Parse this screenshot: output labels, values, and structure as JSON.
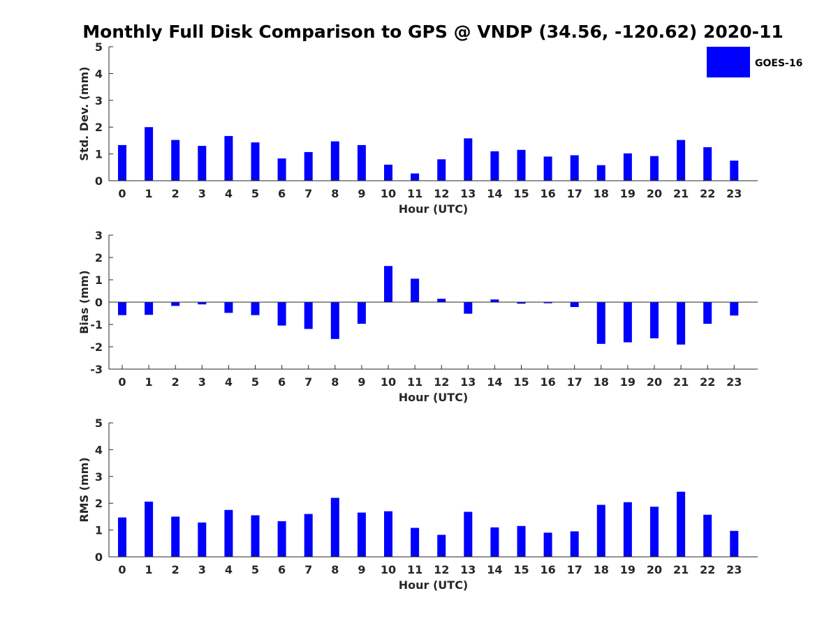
{
  "chart_data": {
    "title": "Monthly Full Disk Comparison to GPS @ VNDP (34.56, -120.62) 2020-11",
    "series_color": "#0000ff",
    "legend": {
      "label": "GOES-16",
      "location": "top-right"
    },
    "panels": [
      {
        "type": "bar",
        "name": "std-dev",
        "xlabel": "Hour (UTC)",
        "ylabel": "Std. Dev. (mm)",
        "ylim": [
          0,
          5
        ],
        "yticks": [
          "0",
          "1",
          "2",
          "3",
          "4",
          "5"
        ],
        "categories": [
          "0",
          "1",
          "2",
          "3",
          "4",
          "5",
          "6",
          "7",
          "8",
          "9",
          "10",
          "11",
          "12",
          "13",
          "14",
          "15",
          "16",
          "17",
          "18",
          "19",
          "20",
          "21",
          "22",
          "23"
        ],
        "values": [
          1.33,
          2.0,
          1.52,
          1.3,
          1.67,
          1.43,
          0.83,
          1.07,
          1.47,
          1.33,
          0.6,
          0.27,
          0.8,
          1.58,
          1.1,
          1.15,
          0.9,
          0.95,
          0.58,
          1.02,
          0.92,
          1.52,
          1.25,
          0.75
        ]
      },
      {
        "type": "bar",
        "name": "bias",
        "xlabel": "Hour (UTC)",
        "ylabel": "Bias (mm)",
        "ylim": [
          -3,
          3
        ],
        "yticks": [
          "-3",
          "-2",
          "-1",
          "0",
          "1",
          "2",
          "3"
        ],
        "categories": [
          "0",
          "1",
          "2",
          "3",
          "4",
          "5",
          "6",
          "7",
          "8",
          "9",
          "10",
          "11",
          "12",
          "13",
          "14",
          "15",
          "16",
          "17",
          "18",
          "19",
          "20",
          "21",
          "22",
          "23"
        ],
        "values": [
          -0.58,
          -0.57,
          -0.17,
          -0.1,
          -0.48,
          -0.58,
          -1.05,
          -1.2,
          -1.65,
          -0.97,
          1.62,
          1.05,
          0.15,
          -0.52,
          0.12,
          -0.07,
          -0.05,
          -0.22,
          -1.87,
          -1.8,
          -1.62,
          -1.9,
          -0.97,
          -0.6
        ]
      },
      {
        "type": "bar",
        "name": "rms",
        "xlabel": "Hour (UTC)",
        "ylabel": "RMS (mm)",
        "ylim": [
          0,
          5
        ],
        "yticks": [
          "0",
          "1",
          "2",
          "3",
          "4",
          "5"
        ],
        "categories": [
          "0",
          "1",
          "2",
          "3",
          "4",
          "5",
          "6",
          "7",
          "8",
          "9",
          "10",
          "11",
          "12",
          "13",
          "14",
          "15",
          "16",
          "17",
          "18",
          "19",
          "20",
          "21",
          "22",
          "23"
        ],
        "values": [
          1.47,
          2.06,
          1.5,
          1.28,
          1.75,
          1.55,
          1.33,
          1.6,
          2.2,
          1.65,
          1.7,
          1.08,
          0.82,
          1.68,
          1.1,
          1.15,
          0.9,
          0.95,
          1.94,
          2.04,
          1.87,
          2.43,
          1.57,
          0.97
        ]
      }
    ]
  }
}
